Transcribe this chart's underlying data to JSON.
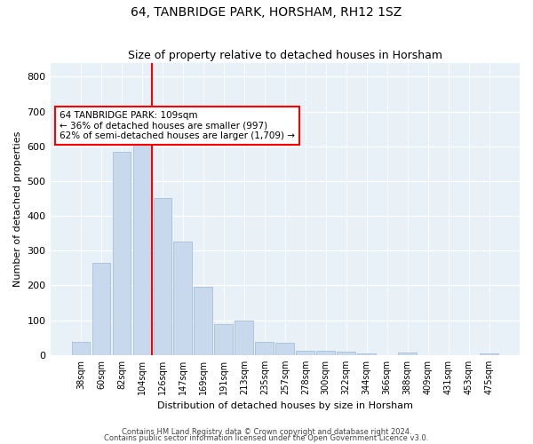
{
  "title": "64, TANBRIDGE PARK, HORSHAM, RH12 1SZ",
  "subtitle": "Size of property relative to detached houses in Horsham",
  "xlabel": "Distribution of detached houses by size in Horsham",
  "ylabel": "Number of detached properties",
  "bar_color": "#c9d9ed",
  "bar_edge_color": "#a8bfd8",
  "background_color": "#e8f0f8",
  "grid_color": "#ffffff",
  "annotation_lines": [
    "64 TANBRIDGE PARK: 109sqm",
    "← 36% of detached houses are smaller (997)",
    "62% of semi-detached houses are larger (1,709) →"
  ],
  "categories": [
    "38sqm",
    "60sqm",
    "82sqm",
    "104sqm",
    "126sqm",
    "147sqm",
    "169sqm",
    "191sqm",
    "213sqm",
    "235sqm",
    "257sqm",
    "278sqm",
    "300sqm",
    "322sqm",
    "344sqm",
    "366sqm",
    "388sqm",
    "409sqm",
    "431sqm",
    "453sqm",
    "475sqm"
  ],
  "values": [
    38,
    265,
    585,
    605,
    450,
    325,
    195,
    90,
    100,
    38,
    35,
    12,
    12,
    10,
    5,
    0,
    8,
    0,
    0,
    0,
    5
  ],
  "ylim": [
    0,
    840
  ],
  "yticks": [
    0,
    100,
    200,
    300,
    400,
    500,
    600,
    700,
    800
  ],
  "footer1": "Contains HM Land Registry data © Crown copyright and database right 2024.",
  "footer2": "Contains public sector information licensed under the Open Government Licence v3.0."
}
